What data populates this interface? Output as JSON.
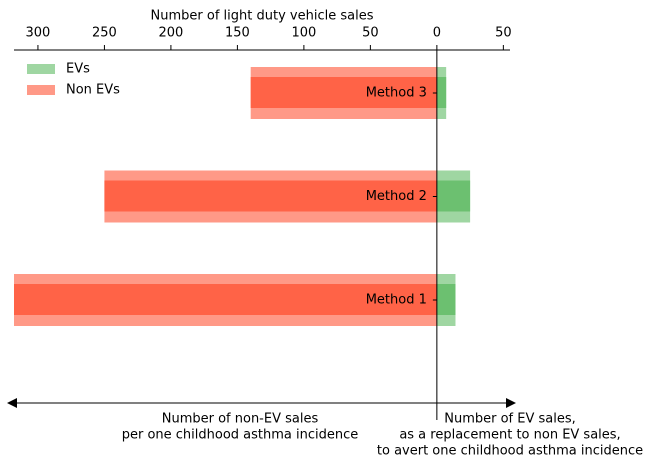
{
  "chart_data": {
    "type": "bar",
    "orientation": "horizontal",
    "x_label": "Number of light duty vehicle sales",
    "categories": [
      "Method 1",
      "Method 2",
      "Method 3"
    ],
    "series": [
      {
        "name": "EVs",
        "color": "#6cc070",
        "values": [
          14,
          25,
          7
        ]
      },
      {
        "name": "Non EVs",
        "color": "#ff6347",
        "values": [
          -318,
          -250,
          -140
        ]
      }
    ],
    "xlim": [
      -318,
      55
    ],
    "xticks": [
      {
        "value": -300,
        "label": "300"
      },
      {
        "value": -250,
        "label": "250"
      },
      {
        "value": -200,
        "label": "200"
      },
      {
        "value": -150,
        "label": "150"
      },
      {
        "value": -100,
        "label": "100"
      },
      {
        "value": -50,
        "label": "50"
      },
      0,
      50
    ],
    "legend": "upper left",
    "annotations": [
      {
        "lines": [
          "Number of non-EV sales",
          "per one childhood asthma incidence"
        ]
      },
      {
        "lines": [
          "Number of EV sales,",
          "as a replacement to non EV sales,",
          "to avert one childhood asthma incidence"
        ]
      }
    ]
  }
}
